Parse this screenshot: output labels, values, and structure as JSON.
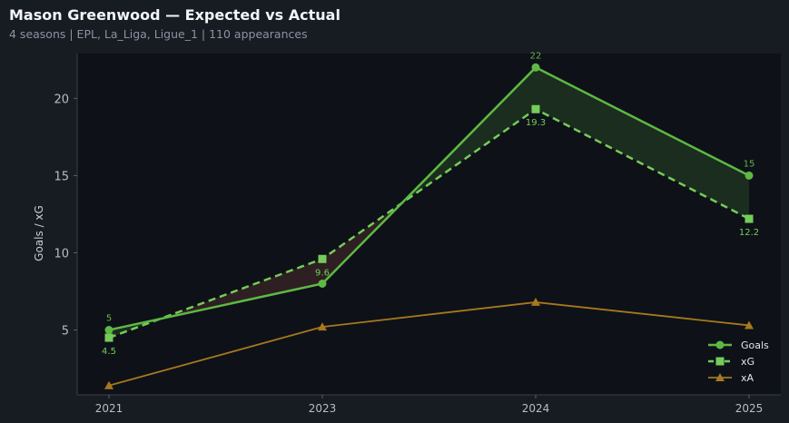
{
  "title": "Mason Greenwood — Expected vs Actual",
  "subtitle": "4 seasons | EPL, La_Liga, Ligue_1 | 110 appearances",
  "chart_data": {
    "type": "line",
    "categories": [
      "2021",
      "2023",
      "2024",
      "2025"
    ],
    "ylabel": "Goals / xG",
    "ylim": [
      0.8,
      22.9
    ],
    "yticks": [
      5,
      10,
      15,
      20
    ],
    "grid": false,
    "legend_position": "lower-right",
    "series": [
      {
        "name": "Goals",
        "values": [
          5,
          8,
          22,
          15
        ],
        "color": "#5db944",
        "marker": "circle",
        "line": "solid",
        "labels": [
          "5",
          "",
          "22",
          "15"
        ]
      },
      {
        "name": "xG",
        "values": [
          4.5,
          9.6,
          19.3,
          12.2
        ],
        "color": "#75cc5a",
        "marker": "square",
        "line": "dashed",
        "labels": [
          "4.5",
          "9.6",
          "19.3",
          "12.2"
        ]
      },
      {
        "name": "xA",
        "values": [
          1.4,
          5.2,
          6.8,
          5.3
        ],
        "color": "#a6781f",
        "marker": "triangle",
        "line": "solid",
        "labels": [
          "",
          "",
          "",
          ""
        ]
      }
    ],
    "fill": {
      "over_color": "#1b2d1e",
      "under_color": "#2e1f22"
    }
  }
}
